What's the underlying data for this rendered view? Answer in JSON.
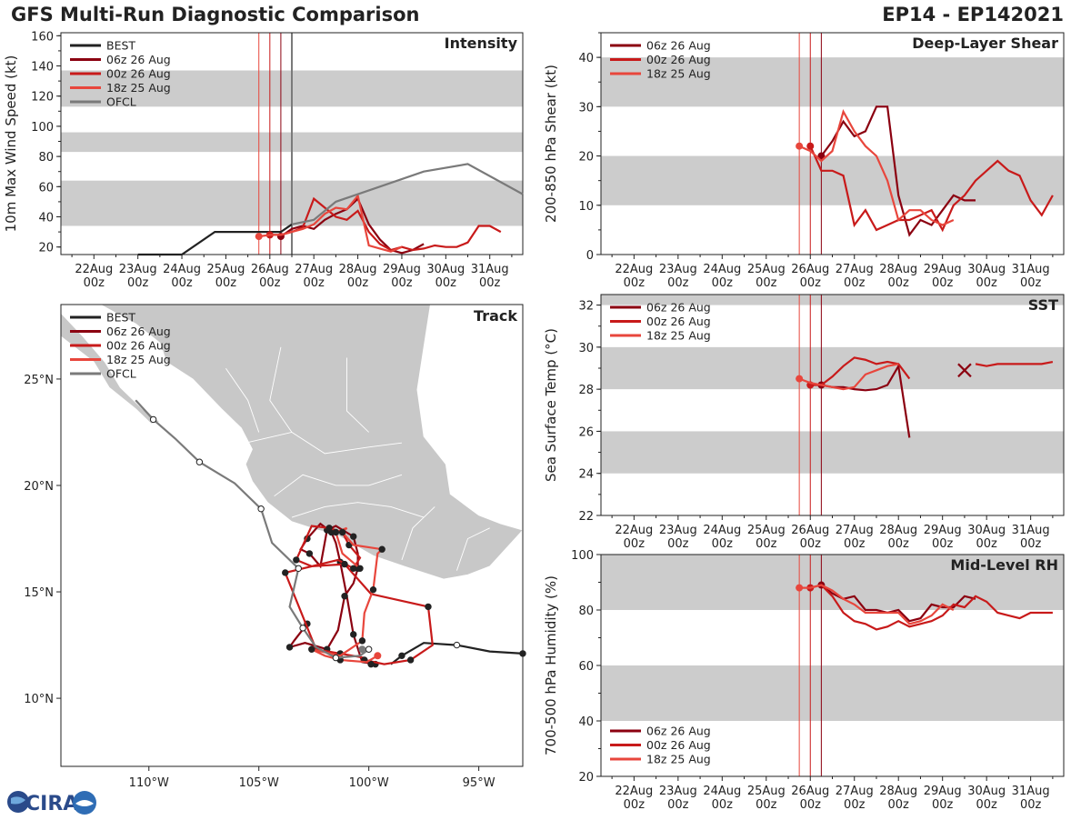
{
  "title": "GFS Multi-Run Diagnostic Comparison",
  "storm_id": "EP14 - EP142021",
  "logo_text": "CIRA",
  "colors": {
    "best": "#222222",
    "run06": "#8b0010",
    "run00": "#c81a1a",
    "run18": "#e8463c",
    "ofcl": "#7a7a7a",
    "band": "#cccccc",
    "land": "#c8c8c8"
  },
  "time_ticks": [
    "22Aug",
    "23Aug",
    "24Aug",
    "25Aug",
    "26Aug",
    "27Aug",
    "28Aug",
    "29Aug",
    "30Aug",
    "31Aug"
  ],
  "time_tick_sub": "00z",
  "init_lines_hours": [
    {
      "run": "18z 25 Aug",
      "h": 90
    },
    {
      "run": "00z 26 Aug",
      "h": 96
    },
    {
      "run": "06z 26 Aug",
      "h": 102
    },
    {
      "run": "OFCL",
      "h": 108
    }
  ],
  "chart_data": [
    {
      "id": "intensity",
      "type": "line",
      "title": "Intensity",
      "ylabel": "10m Max Wind Speed (kt)",
      "x_unit": "hours since 22Aug 00z",
      "xlim": [
        -18,
        234
      ],
      "ylim": [
        15,
        162
      ],
      "yticks": [
        20,
        40,
        60,
        80,
        100,
        120,
        140,
        160
      ],
      "bands": [
        [
          34,
          64
        ],
        [
          83,
          96
        ],
        [
          113,
          137
        ]
      ],
      "legend": [
        "BEST",
        "06z 26 Aug",
        "00z 26 Aug",
        "18z 25 Aug",
        "OFCL"
      ],
      "series": [
        {
          "name": "BEST",
          "color_key": "best",
          "x": [
            24,
            48,
            66,
            90,
            96,
            102,
            108
          ],
          "y": [
            15,
            15,
            30,
            30,
            30,
            30,
            35
          ]
        },
        {
          "name": "06z 26 Aug",
          "color_key": "run06",
          "x": [
            102,
            108,
            114,
            120,
            126,
            132,
            138,
            144,
            150,
            156,
            162,
            168,
            174,
            180
          ],
          "y": [
            27,
            32,
            34,
            32,
            38,
            42,
            45,
            52,
            35,
            25,
            18,
            16,
            18,
            22
          ]
        },
        {
          "name": "00z 26 Aug",
          "color_key": "run00",
          "x": [
            96,
            102,
            108,
            114,
            120,
            126,
            132,
            138,
            144,
            150,
            156,
            162,
            168,
            174,
            180,
            186,
            192,
            198,
            204,
            210,
            216,
            222
          ],
          "y": [
            28,
            28,
            30,
            33,
            52,
            46,
            40,
            38,
            44,
            30,
            22,
            18,
            20,
            18,
            19,
            21,
            20,
            20,
            23,
            34,
            34,
            30
          ]
        },
        {
          "name": "18z 25 Aug",
          "color_key": "run18",
          "x": [
            90,
            96,
            102,
            108,
            114,
            120,
            126,
            132,
            138,
            144,
            150,
            156,
            162,
            168
          ],
          "y": [
            27,
            28,
            28,
            30,
            32,
            35,
            42,
            46,
            45,
            54,
            21,
            19,
            17,
            20
          ]
        },
        {
          "name": "OFCL",
          "color_key": "ofcl",
          "x": [
            108,
            120,
            132,
            156,
            180,
            204,
            234
          ],
          "y": [
            35,
            38,
            50,
            60,
            70,
            75,
            55
          ]
        }
      ]
    },
    {
      "id": "shear",
      "type": "line",
      "title": "Deep-Layer Shear",
      "ylabel": "200-850 hPa Shear (kt)",
      "xlim": [
        -18,
        234
      ],
      "ylim": [
        0,
        45
      ],
      "yticks": [
        0,
        10,
        20,
        30,
        40
      ],
      "bands": [
        [
          10,
          20
        ],
        [
          30,
          40
        ]
      ],
      "legend": [
        "06z 26 Aug",
        "00z 26 Aug",
        "18z 25 Aug"
      ],
      "series": [
        {
          "name": "06z 26 Aug",
          "color_key": "run06",
          "x": [
            102,
            108,
            114,
            120,
            126,
            132,
            138,
            144,
            150,
            156,
            162,
            168,
            174,
            180,
            186
          ],
          "y": [
            20,
            23,
            27,
            24,
            25,
            30,
            30,
            12,
            4,
            7,
            6,
            9,
            12,
            11,
            11
          ]
        },
        {
          "name": "00z 26 Aug",
          "color_key": "run00",
          "x": [
            96,
            102,
            108,
            114,
            120,
            126,
            132,
            138,
            144,
            150,
            156,
            162,
            168,
            174,
            180,
            186,
            192,
            198,
            204,
            210,
            216,
            222,
            228
          ],
          "y": [
            22,
            17,
            17,
            16,
            6,
            9,
            5,
            6,
            7,
            7,
            8,
            9,
            5,
            10,
            12,
            15,
            17,
            19,
            17,
            16,
            11,
            8,
            12
          ]
        },
        {
          "name": "18z 25 Aug",
          "color_key": "run18",
          "x": [
            90,
            96,
            102,
            108,
            114,
            120,
            126,
            132,
            138,
            144,
            150,
            156,
            162,
            168,
            174
          ],
          "y": [
            22,
            21,
            19,
            21,
            29,
            25,
            22,
            20,
            15,
            7,
            9,
            9,
            7,
            6,
            7
          ]
        }
      ]
    },
    {
      "id": "sst",
      "type": "line",
      "title": "SST",
      "ylabel": "Sea Surface Temp (°C)",
      "xlim": [
        -18,
        234
      ],
      "ylim": [
        22,
        32.5
      ],
      "yticks": [
        22,
        24,
        26,
        28,
        30,
        32
      ],
      "bands": [
        [
          24,
          26
        ],
        [
          28,
          30
        ],
        [
          32,
          32.5
        ]
      ],
      "legend": [
        "06z 26 Aug",
        "00z 26 Aug",
        "18z 25 Aug"
      ],
      "marker_x": {
        "x": 180,
        "y": 28.9,
        "color_key": "run06"
      },
      "series": [
        {
          "name": "06z 26 Aug",
          "color_key": "run06",
          "x": [
            102,
            108,
            114,
            120,
            126,
            132,
            138,
            144,
            150
          ],
          "y": [
            28.2,
            28.1,
            28.1,
            28.0,
            27.95,
            28.0,
            28.2,
            29.1,
            25.7
          ]
        },
        {
          "name": "00z 26 Aug",
          "color_key": "run00",
          "x": [
            96,
            102,
            108,
            114,
            120,
            126,
            132,
            138,
            144,
            150,
            186,
            192,
            198,
            204,
            210,
            216,
            222,
            228
          ],
          "y": [
            28.2,
            28.2,
            28.6,
            29.1,
            29.5,
            29.4,
            29.2,
            29.3,
            29.2,
            28.5,
            29.2,
            29.1,
            29.2,
            29.2,
            29.2,
            29.2,
            29.2,
            29.3
          ]
        },
        {
          "name": "18z 25 Aug",
          "color_key": "run18",
          "x": [
            90,
            96,
            102,
            108,
            114,
            120,
            126,
            132,
            138,
            144
          ],
          "y": [
            28.5,
            28.3,
            28.2,
            28.1,
            28.0,
            28.1,
            28.7,
            28.9,
            29.1,
            29.2
          ]
        }
      ]
    },
    {
      "id": "rh",
      "type": "line",
      "title": "Mid-Level RH",
      "ylabel": "700-500 hPa Humidity (%)",
      "xlim": [
        -18,
        234
      ],
      "ylim": [
        20,
        100
      ],
      "yticks": [
        20,
        40,
        60,
        80,
        100
      ],
      "bands": [
        [
          40,
          60
        ],
        [
          80,
          100
        ]
      ],
      "legend": [
        "06z 26 Aug",
        "00z 26 Aug",
        "18z 25 Aug"
      ],
      "series": [
        {
          "name": "06z 26 Aug",
          "color_key": "run06",
          "x": [
            102,
            108,
            114,
            120,
            126,
            132,
            138,
            144,
            150,
            156,
            162,
            168,
            174,
            180,
            186
          ],
          "y": [
            89,
            86,
            84,
            85,
            80,
            80,
            79,
            80,
            76,
            77,
            82,
            81,
            81,
            85,
            84
          ]
        },
        {
          "name": "00z 26 Aug",
          "color_key": "run00",
          "x": [
            96,
            102,
            108,
            114,
            120,
            126,
            132,
            138,
            144,
            150,
            156,
            162,
            168,
            174,
            180,
            186,
            192,
            198,
            204,
            210,
            216,
            222,
            228
          ],
          "y": [
            88,
            89,
            85,
            79,
            76,
            75,
            73,
            74,
            76,
            74,
            75,
            76,
            78,
            82,
            81,
            85,
            83,
            79,
            78,
            77,
            79,
            79,
            79
          ]
        },
        {
          "name": "18z 25 Aug",
          "color_key": "run18",
          "x": [
            90,
            96,
            102,
            108,
            114,
            120,
            126,
            132,
            138,
            144,
            150,
            156,
            162,
            168,
            174
          ],
          "y": [
            88,
            88,
            89,
            87,
            84,
            82,
            79,
            79,
            79,
            79,
            75,
            76,
            78,
            82,
            80
          ]
        }
      ]
    },
    {
      "id": "track",
      "type": "line",
      "title": "Track",
      "x_unit": "longitude (°E, negative = W)",
      "xlim": [
        -114.0,
        -93.0
      ],
      "ylim": [
        6.8,
        28.5
      ],
      "xticks": [
        -110,
        -105,
        -100,
        -95
      ],
      "xtick_labels": [
        "110°W",
        "105°W",
        "100°W",
        "95°W"
      ],
      "yticks": [
        10,
        15,
        20,
        25
      ],
      "ytick_labels": [
        "10°N",
        "15°N",
        "20°N",
        "25°N"
      ],
      "legend": [
        "BEST",
        "06z 26 Aug",
        "00z 26 Aug",
        "18z 25 Aug",
        "OFCL"
      ],
      "series": [
        {
          "name": "BEST",
          "color_key": "best",
          "lon": [
            -93.0,
            -94.5,
            -96.0,
            -97.5,
            -98.5,
            -99.0
          ],
          "lat": [
            12.1,
            12.2,
            12.5,
            12.6,
            12.0,
            11.6
          ]
        },
        {
          "name": "06z 26 Aug",
          "color_key": "run06",
          "lon": [
            -99.7,
            -100.3,
            -100.7,
            -101.0,
            -101.3,
            -101.5,
            -101.7,
            -102.2,
            -102.8,
            -103.1,
            -102.7,
            -102.2,
            -101.9,
            -101.5,
            -100.7,
            -100.5,
            -100.5,
            -100.7,
            -101.1,
            -101.4,
            -101.9,
            -102.9,
            -103.6,
            -103.4,
            -102.8
          ],
          "lat": [
            11.6,
            11.7,
            13.0,
            14.8,
            16.4,
            17.3,
            17.8,
            18.2,
            17.5,
            17.0,
            16.8,
            16.2,
            17.9,
            18.1,
            17.6,
            16.8,
            16.1,
            15.4,
            14.8,
            13.2,
            12.3,
            12.6,
            12.4,
            12.7,
            13.5
          ]
        },
        {
          "name": "00z 26 Aug",
          "color_key": "run00",
          "lon": [
            -99.9,
            -100.2,
            -101.3,
            -102.4,
            -103.8,
            -101.4,
            -100.7,
            -100.4,
            -100.9,
            -101.2,
            -101.8,
            -102.6,
            -103.3,
            -102.6,
            -101.1,
            -99.9,
            -97.3,
            -97.1,
            -98.1,
            -99.3,
            -100.2
          ],
          "lat": [
            11.6,
            11.9,
            12.1,
            12.3,
            15.9,
            16.5,
            16.1,
            16.6,
            17.2,
            17.8,
            18.0,
            18.1,
            16.5,
            16.2,
            16.3,
            14.9,
            14.3,
            12.5,
            11.8,
            11.6,
            11.8
          ]
        },
        {
          "name": "18z 25 Aug",
          "color_key": "run18",
          "lon": [
            -99.6,
            -100.1,
            -101.3,
            -102.0,
            -102.6,
            -101.3,
            -100.3,
            -100.2,
            -99.8,
            -99.6,
            -99.4,
            -100.7,
            -101.2,
            -101.0,
            -101.5,
            -101.2,
            -100.4
          ],
          "lat": [
            12.0,
            11.7,
            11.8,
            12.0,
            12.3,
            12.0,
            12.7,
            14.0,
            15.1,
            16.8,
            17.0,
            17.2,
            17.8,
            18.0,
            17.8,
            16.8,
            16.1
          ]
        },
        {
          "name": "OFCL",
          "color_key": "ofcl",
          "lon": [
            -100.0,
            -100.4,
            -101.5,
            -102.4,
            -103.0,
            -103.6,
            -103.2,
            -104.4,
            -104.9,
            -106.1,
            -107.7,
            -108.8,
            -109.8,
            -110.6
          ],
          "lat": [
            12.3,
            12.0,
            11.9,
            12.4,
            13.3,
            14.3,
            16.1,
            17.3,
            18.9,
            20.1,
            21.1,
            22.2,
            23.1,
            24.0
          ]
        }
      ]
    }
  ]
}
